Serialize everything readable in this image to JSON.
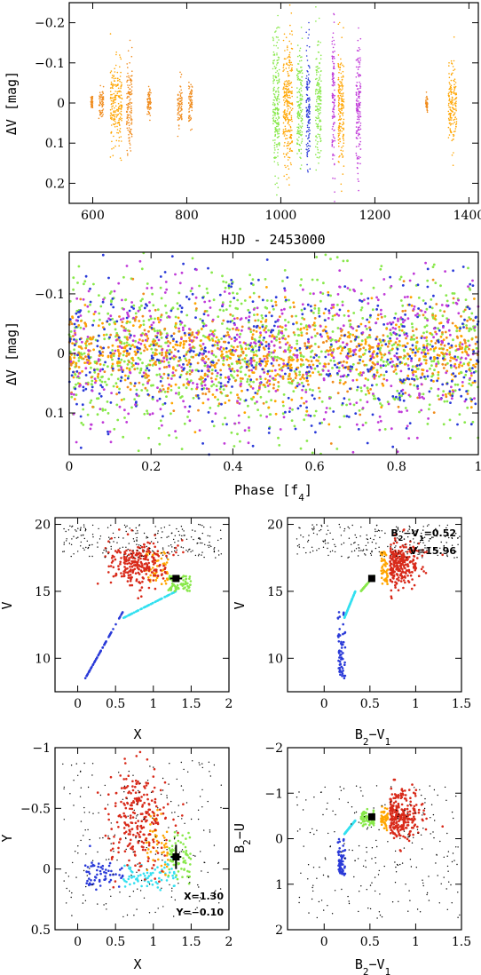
{
  "colors": {
    "orange": "#f08c1e",
    "amber": "#ffa500",
    "green": "#88e84a",
    "blue": "#2a3ad8",
    "magenta": "#c03ad8",
    "cyan": "#33e0f0",
    "red": "#d82a1a",
    "black": "#000000"
  },
  "chart_data": [
    {
      "id": "lightcurve",
      "type": "scatter",
      "xlabel": "HJD - 2453000",
      "ylabel": "ΔV [mag]",
      "xlim": [
        550,
        1420
      ],
      "ylim": [
        0.25,
        -0.25
      ],
      "xticks": [
        600,
        800,
        1000,
        1200,
        1400
      ],
      "yticks": [
        -0.2,
        -0.1,
        0,
        0.1,
        0.2
      ],
      "yticklabels": [
        "−0.2",
        "−0.1",
        "0",
        "0.1",
        "0.2"
      ],
      "observing_runs": [
        {
          "center": 598,
          "width": 4,
          "spread": 0.02,
          "color": "orange"
        },
        {
          "center": 618,
          "width": 10,
          "spread": 0.04,
          "color": "orange"
        },
        {
          "center": 650,
          "width": 25,
          "spread": 0.11,
          "color": "amber"
        },
        {
          "center": 678,
          "width": 12,
          "spread": 0.12,
          "color": "orange"
        },
        {
          "center": 720,
          "width": 8,
          "spread": 0.05,
          "color": "orange"
        },
        {
          "center": 785,
          "width": 10,
          "spread": 0.06,
          "color": "orange"
        },
        {
          "center": 808,
          "width": 8,
          "spread": 0.06,
          "color": "orange"
        },
        {
          "center": 990,
          "width": 14,
          "spread": 0.2,
          "color": "green"
        },
        {
          "center": 1015,
          "width": 20,
          "spread": 0.19,
          "color": "amber"
        },
        {
          "center": 1040,
          "width": 12,
          "spread": 0.16,
          "color": "green"
        },
        {
          "center": 1058,
          "width": 8,
          "spread": 0.17,
          "color": "blue"
        },
        {
          "center": 1080,
          "width": 12,
          "spread": 0.16,
          "color": "green"
        },
        {
          "center": 1112,
          "width": 6,
          "spread": 0.21,
          "color": "magenta"
        },
        {
          "center": 1128,
          "width": 12,
          "spread": 0.18,
          "color": "amber"
        },
        {
          "center": 1165,
          "width": 10,
          "spread": 0.2,
          "color": "magenta"
        },
        {
          "center": 1310,
          "width": 4,
          "spread": 0.02,
          "color": "orange"
        },
        {
          "center": 1365,
          "width": 18,
          "spread": 0.11,
          "color": "amber"
        }
      ]
    },
    {
      "id": "phased",
      "type": "scatter",
      "xlabel": "Phase [f",
      "xlabel_sub": "4",
      "xlabel_end": "]",
      "ylabel": "ΔV [mag]",
      "xlim": [
        0,
        1
      ],
      "ylim": [
        0.17,
        -0.17
      ],
      "xticks": [
        0,
        0.2,
        0.4,
        0.6,
        0.8,
        1
      ],
      "xticklabels": [
        "0",
        "0.2",
        "0.4",
        "0.6",
        "0.8",
        "1"
      ],
      "yticks": [
        -0.1,
        0,
        0.1
      ],
      "yticklabels": [
        "−0.1",
        "0",
        "0.1"
      ],
      "spread": 0.16,
      "series_colors": [
        "green",
        "green",
        "orange",
        "amber",
        "blue",
        "magenta"
      ]
    },
    {
      "id": "cmd-x-v",
      "type": "scatter",
      "xlabel": "X",
      "ylabel": "V",
      "xlim": [
        -0.3,
        2
      ],
      "ylim": [
        7.5,
        20.5
      ],
      "xticks": [
        0,
        0.5,
        1,
        1.5,
        2
      ],
      "xticklabels": [
        "0",
        "0.5",
        "1",
        "1.5",
        "2"
      ],
      "yticks": [
        10,
        15,
        20
      ],
      "yticklabels": [
        "10",
        "15",
        "20"
      ],
      "star": {
        "x": 1.3,
        "y": 15.96,
        "xerr": 0.08,
        "yerr": 0.2
      }
    },
    {
      "id": "cmd-bv-v",
      "type": "scatter",
      "xlabel": "B",
      "xlabel_sub1": "2",
      "xlabel_mid": "−V",
      "xlabel_sub2": "1",
      "ylabel": "V",
      "xlim": [
        -0.4,
        1.5
      ],
      "ylim": [
        7.5,
        20.5
      ],
      "xticks": [
        0,
        0.5,
        1,
        1.5
      ],
      "xticklabels": [
        "0",
        "0.5",
        "1",
        "1.5"
      ],
      "yticks": [
        10,
        15,
        20
      ],
      "yticklabels": [
        "10",
        "15",
        "20"
      ],
      "star": {
        "x": 0.52,
        "y": 15.96
      },
      "annotations": {
        "color_index_label": "B",
        "color_index_sub1": "2",
        "color_index_mid": "−V",
        "color_index_sub2": "1",
        "color_index_value": "=0.52",
        "magnitude": "V=15.96"
      }
    },
    {
      "id": "xy",
      "type": "scatter",
      "xlabel": "X",
      "ylabel": "Y",
      "xlim": [
        -0.3,
        2
      ],
      "ylim": [
        0.5,
        -1
      ],
      "xticks": [
        0,
        0.5,
        1,
        1.5,
        2
      ],
      "xticklabels": [
        "0",
        "0.5",
        "1",
        "1.5",
        "2"
      ],
      "yticks": [
        0.5,
        0,
        -0.5,
        -1
      ],
      "yticklabels": [
        "0.5",
        "0",
        "−0.5",
        "−1"
      ],
      "star": {
        "x": 1.3,
        "y": -0.1,
        "xerr": 0.07,
        "yerr": 0.1
      },
      "annotations": {
        "x_value": "X=1.30",
        "y_value": "Y=−0.10"
      }
    },
    {
      "id": "ccd",
      "type": "scatter",
      "xlabel": "B",
      "xlabel_sub1": "2",
      "xlabel_mid": "−V",
      "xlabel_sub2": "1",
      "ylabel": "B",
      "ylabel_sub": "2",
      "ylabel_end": "−U",
      "xlim": [
        -0.4,
        1.5
      ],
      "ylim": [
        2,
        -2
      ],
      "xticks": [
        0,
        0.5,
        1,
        1.5
      ],
      "xticklabels": [
        "0",
        "0.5",
        "1",
        "1.5"
      ],
      "yticks": [
        2,
        1,
        0,
        -1,
        -2
      ],
      "yticklabels": [
        "2",
        "1",
        "0",
        "−1",
        "−2"
      ],
      "star": {
        "x": 0.52,
        "y": -0.48
      }
    }
  ]
}
